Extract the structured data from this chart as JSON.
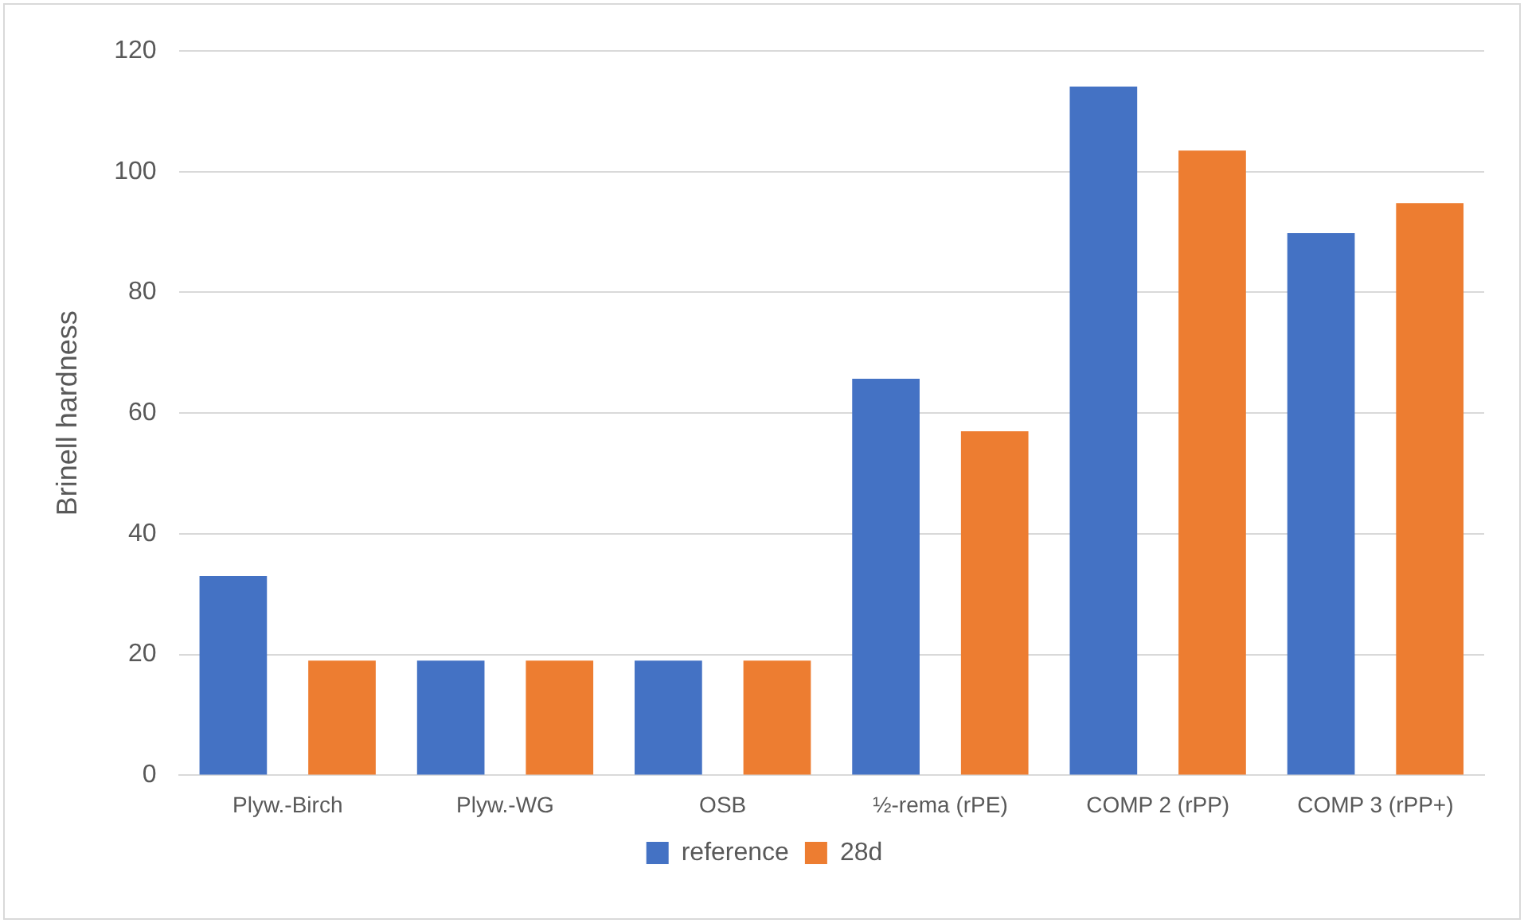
{
  "chart_data": {
    "type": "bar",
    "ylabel": "Brinell hardness",
    "categories": [
      "Plyw.-Birch",
      "Plyw.-WG",
      "OSB",
      "½-rema (rPE)",
      "COMP 2 (rPP)",
      "COMP 3 (rPP+)"
    ],
    "series": [
      {
        "name": "reference",
        "color": "#4472c4",
        "values": [
          33,
          19,
          19,
          65.7,
          114.1,
          89.8
        ]
      },
      {
        "name": "28d",
        "color": "#ed7d31",
        "values": [
          19,
          19,
          19,
          57,
          103.5,
          94.8
        ]
      }
    ],
    "ylim": [
      0,
      120
    ],
    "yticks": [
      0,
      20,
      40,
      60,
      80,
      100,
      120
    ],
    "grid": "y",
    "legend": "bottom"
  }
}
